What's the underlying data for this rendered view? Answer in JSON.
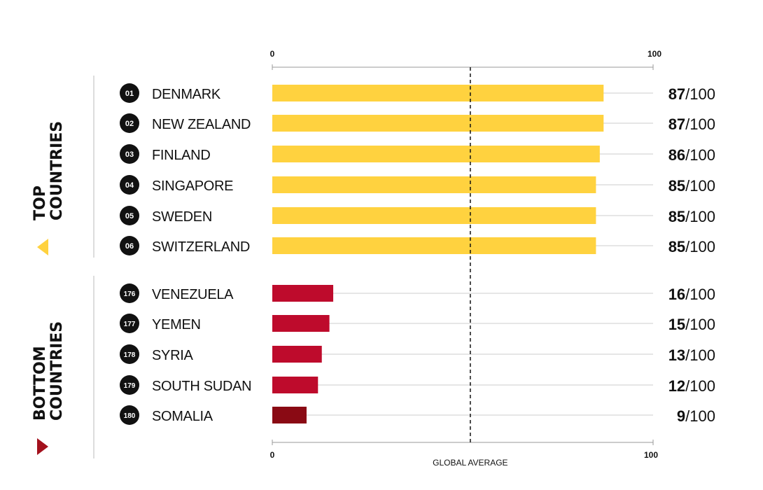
{
  "chart_data": {
    "type": "bar",
    "orientation": "horizontal",
    "xlim": [
      0,
      100
    ],
    "top_tick_labels": [
      "0",
      "100"
    ],
    "bottom_tick_labels": [
      "0",
      "100"
    ],
    "reference_line_label": "GLOBAL AVERAGE",
    "reference_line_value": 52,
    "value_suffix": "/100",
    "groups": [
      {
        "label_line1": "TOP",
        "label_line2": "COUNTRIES",
        "bar_color": "#FFD23F",
        "rows": [
          {
            "rank": "01",
            "country": "DENMARK",
            "value": 87
          },
          {
            "rank": "02",
            "country": "NEW ZEALAND",
            "value": 87
          },
          {
            "rank": "03",
            "country": "FINLAND",
            "value": 86
          },
          {
            "rank": "04",
            "country": "SINGAPORE",
            "value": 85
          },
          {
            "rank": "05",
            "country": "SWEDEN",
            "value": 85
          },
          {
            "rank": "06",
            "country": "SWITZERLAND",
            "value": 85
          }
        ]
      },
      {
        "label_line1": "BOTTOM",
        "label_line2": "COUNTRIES",
        "bar_color": "#BE0B2C",
        "rows": [
          {
            "rank": "176",
            "country": "VENEZUELA",
            "value": 16
          },
          {
            "rank": "177",
            "country": "YEMEN",
            "value": 15
          },
          {
            "rank": "178",
            "country": "SYRIA",
            "value": 13
          },
          {
            "rank": "179",
            "country": "SOUTH SUDAN",
            "value": 12
          },
          {
            "rank": "180",
            "country": "SOMALIA",
            "value": 9,
            "bar_color": "#8A0A14"
          }
        ]
      }
    ]
  },
  "colors": {
    "rank_badge": "#111111",
    "top_marker": "#FFD23F",
    "bottom_marker": "#A3111D",
    "guide_line": "#cccccc",
    "axis": "#999999"
  }
}
